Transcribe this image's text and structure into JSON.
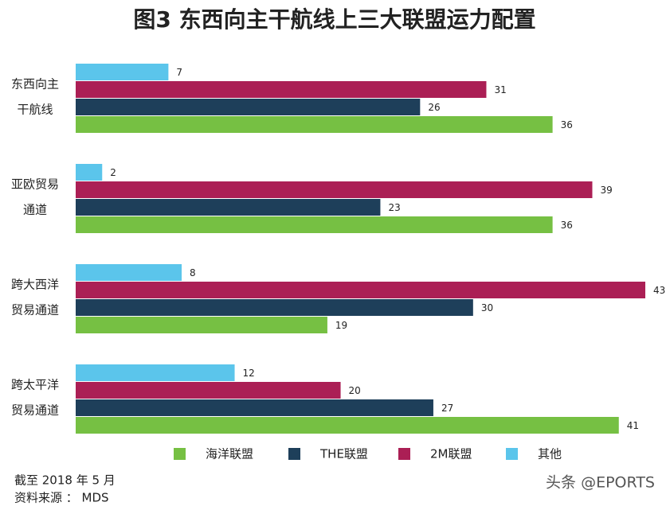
{
  "chart_data": {
    "type": "hbar",
    "title": "图3  东西向主干航线上三大联盟运力配置",
    "categories": [
      [
        "东西向主",
        "干航线"
      ],
      [
        "亚欧贸易",
        "通道"
      ],
      [
        "跨大西洋",
        "贸易通道"
      ],
      [
        "跨太平洋",
        "贸易通道"
      ]
    ],
    "series": [
      {
        "name": "海洋联盟",
        "color": "#76c043",
        "values": [
          36,
          36,
          19,
          41
        ]
      },
      {
        "name": "THE联盟",
        "color": "#1e3f5a",
        "values": [
          26,
          23,
          30,
          27
        ]
      },
      {
        "name": "2M联盟",
        "color": "#ab1f55",
        "values": [
          31,
          39,
          43,
          20
        ]
      },
      {
        "name": "其他",
        "color": "#5bc5eb",
        "values": [
          7,
          2,
          8,
          12
        ]
      }
    ],
    "notes": [
      "截至 2018 年 5 月",
      "资料来源 ： MDS"
    ],
    "watermark": "头条 @EPORTS"
  }
}
